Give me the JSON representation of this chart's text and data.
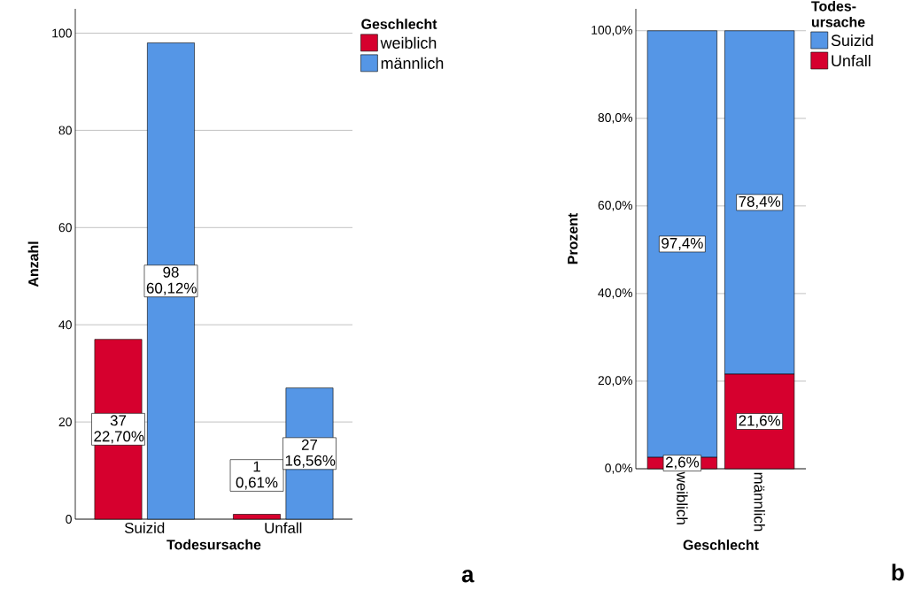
{
  "chart_data": [
    {
      "type": "bar",
      "xlabel": "Todesursache",
      "ylabel": "Anzahl",
      "legend_title": "Geschlecht",
      "categories": [
        "Suizid",
        "Unfall"
      ],
      "series": [
        {
          "name": "weiblich",
          "color": "#d6002e",
          "values": [
            37,
            1
          ],
          "value_labels": [
            "37 22,70%",
            "1 0,61%"
          ]
        },
        {
          "name": "männlich",
          "color": "#5596e6",
          "values": [
            98,
            27
          ],
          "value_labels": [
            "98 60,12%",
            "27 16,56%"
          ]
        }
      ],
      "ylim": [
        0,
        105
      ],
      "yticks": [
        0,
        20,
        40,
        60,
        80,
        100
      ],
      "grid": "y",
      "legend": "top right",
      "annotations": [
        "a"
      ]
    },
    {
      "type": "bar",
      "stacked": true,
      "xlabel": "Geschlecht",
      "ylabel": "Prozent",
      "legend_title": "Todes- ursache",
      "categories": [
        "weiblich",
        "männlich"
      ],
      "series": [
        {
          "name": "Unfall",
          "color": "#d6002e",
          "values": [
            2.6,
            21.6
          ],
          "value_labels": [
            "2,6%",
            "21,6%"
          ]
        },
        {
          "name": "Suizid",
          "color": "#5596e6",
          "values": [
            97.4,
            78.4
          ],
          "value_labels": [
            "97,4%",
            "78,4%"
          ]
        }
      ],
      "ylim": [
        0,
        105
      ],
      "yticks": [
        {
          "value": 0,
          "label": "0,0%"
        },
        {
          "value": 20,
          "label": "20,0%"
        },
        {
          "value": 40,
          "label": "40,0%"
        },
        {
          "value": 60,
          "label": "60,0%"
        },
        {
          "value": 80,
          "label": "80,0%"
        },
        {
          "value": 100,
          "label": "100,0%"
        }
      ],
      "grid": "y",
      "legend": "top right",
      "annotations": [
        "b"
      ]
    }
  ]
}
